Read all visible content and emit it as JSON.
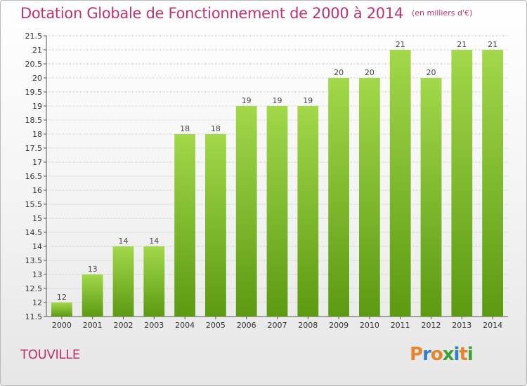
{
  "header": {
    "title": "Dotation Globale de Fonctionnement de 2000 à 2014",
    "unit": "(en milliers d'€)"
  },
  "commune": "TOUVILLE",
  "logo": {
    "letters": [
      "P",
      "r",
      "o",
      "x",
      "i",
      "t",
      "i"
    ],
    "colors": [
      "#e8842a",
      "#2f7fd0",
      "#e8842a",
      "#3aa336",
      "#2f7fd0",
      "#e8842a",
      "#3aa336"
    ]
  },
  "colors": {
    "bar_top": "#a2d84a",
    "bar_bottom": "#5c9a12",
    "title": "#c0326e"
  },
  "chart_data": {
    "type": "bar",
    "categories": [
      "2000",
      "2001",
      "2002",
      "2003",
      "2004",
      "2005",
      "2006",
      "2007",
      "2008",
      "2009",
      "2010",
      "2011",
      "2012",
      "2013",
      "2014"
    ],
    "values": [
      12,
      13,
      14,
      14,
      18,
      18,
      19,
      19,
      19,
      20,
      20,
      21,
      20,
      21,
      21
    ],
    "ylim": [
      11.5,
      21.5
    ],
    "yticks": [
      "11.5",
      "12",
      "12.5",
      "13",
      "13.5",
      "14",
      "14.5",
      "15",
      "15.5",
      "16",
      "16.5",
      "17",
      "17.5",
      "18",
      "18.5",
      "19",
      "19.5",
      "20",
      "20.5",
      "21",
      "21.5"
    ],
    "grid": true
  }
}
